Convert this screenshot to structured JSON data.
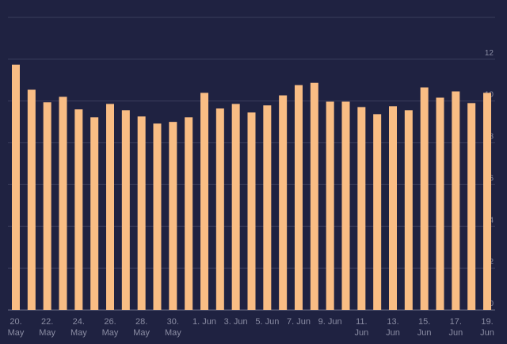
{
  "chart_data": {
    "type": "bar",
    "categories": [
      "20. May",
      null,
      "22. May",
      null,
      "24. May",
      null,
      "26. May",
      null,
      "28. May",
      null,
      "30. May",
      null,
      "1. Jun",
      null,
      "3. Jun",
      null,
      "5. Jun",
      null,
      "7. Jun",
      null,
      "9. Jun",
      null,
      "11. Jun",
      null,
      "13. Jun",
      null,
      "15. Jun",
      null,
      "17. Jun",
      null,
      "19. Jun"
    ],
    "values": [
      11.74,
      10.54,
      9.94,
      10.2,
      9.6,
      9.22,
      9.86,
      9.56,
      9.26,
      8.92,
      9.0,
      9.22,
      10.39,
      9.64,
      9.86,
      9.45,
      9.79,
      10.27,
      10.76,
      10.87,
      9.97,
      9.97,
      9.71,
      9.37,
      9.75,
      9.56,
      10.65,
      10.16,
      10.46,
      9.9,
      10.39
    ],
    "color": "#f9bd84",
    "ylim": [
      0,
      14
    ],
    "yticks": [
      0,
      2,
      4,
      6,
      8,
      10,
      12
    ],
    "grid": true
  }
}
